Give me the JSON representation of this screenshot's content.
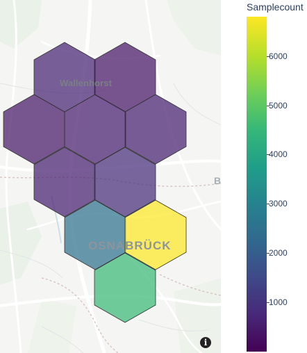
{
  "map": {
    "places": {
      "wallenhorst": "Wallenhorst",
      "osnabrueck": "OSNABRÜCK",
      "edge": "B"
    },
    "info_icon": "info-icon",
    "hexbins": [
      {
        "id": "hex-r0-a",
        "samplecount": 650
      },
      {
        "id": "hex-r0-b",
        "samplecount": 380
      },
      {
        "id": "hex-r1-a",
        "samplecount": 420
      },
      {
        "id": "hex-r1-b",
        "samplecount": 520
      },
      {
        "id": "hex-r1-c",
        "samplecount": 560
      },
      {
        "id": "hex-r2-a",
        "samplecount": 580
      },
      {
        "id": "hex-r2-b",
        "samplecount": 850
      },
      {
        "id": "hex-r3-a",
        "samplecount": 2500
      },
      {
        "id": "hex-r3-b",
        "samplecount": 6800
      },
      {
        "id": "hex-r4-a",
        "samplecount": 4600
      }
    ]
  },
  "colorbar": {
    "title": "Samplecount",
    "colorscale": "Viridis",
    "range": [
      0,
      6800
    ],
    "ticks": [
      {
        "value": 1000,
        "label": "1000"
      },
      {
        "value": 2000,
        "label": "2000"
      },
      {
        "value": 3000,
        "label": "3000"
      },
      {
        "value": 4000,
        "label": "4000"
      },
      {
        "value": 5000,
        "label": "5000"
      },
      {
        "value": 6000,
        "label": "6000"
      }
    ]
  }
}
